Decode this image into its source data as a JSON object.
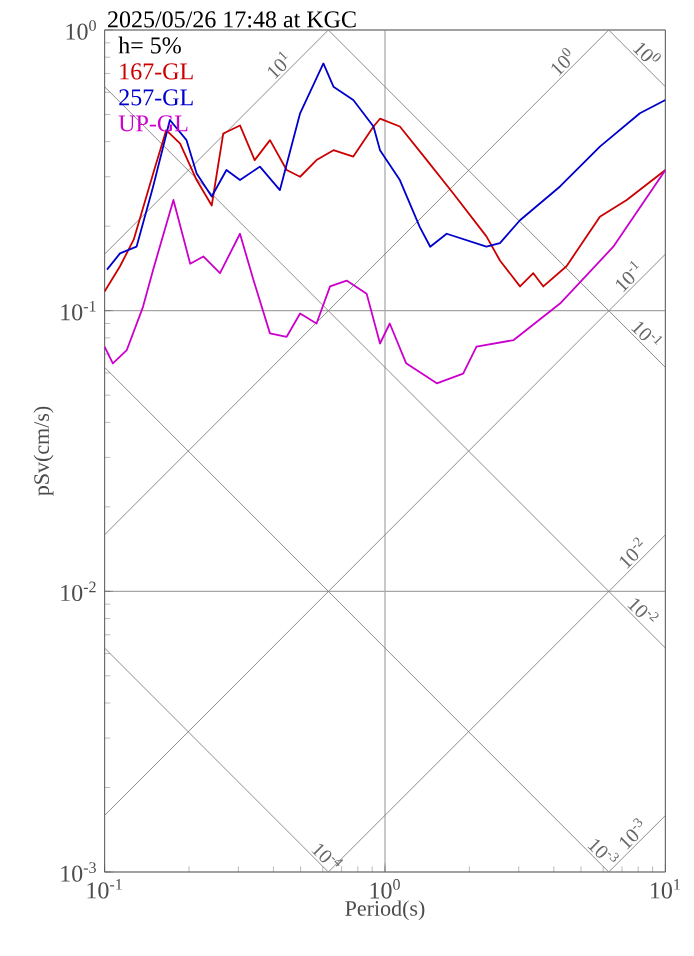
{
  "chart_data": {
    "type": "line",
    "title": "2025/05/26 17:48 at KGC",
    "xlabel": "Period(s)",
    "ylabel": "pSv(cm/s)",
    "log": "xy",
    "grid": true,
    "legend": "top left",
    "marker": "none",
    "line_style": "solid",
    "xlim": [
      0.1,
      10
    ],
    "ylim": [
      0.001,
      1
    ],
    "xticks": [
      {
        "value": 0.1,
        "label": "10$^{-1}$"
      },
      {
        "value": 1,
        "label": "10$^{0}$"
      },
      {
        "value": 10,
        "label": "10$^{1}$"
      }
    ],
    "yticks": [
      {
        "value": 0.001,
        "label": "10$^{-3}$"
      },
      {
        "value": 0.01,
        "label": "10$^{-2}$"
      },
      {
        "value": 0.1,
        "label": "10$^{-1}$"
      },
      {
        "value": 1,
        "label": "10$^{0}$"
      }
    ],
    "series": [
      {
        "color": "#808080",
        "x": [
          0.1,
          0.628
        ],
        "values": [
          0.00628,
          0.001
        ]
      },
      {
        "color": "#808080",
        "x": [
          0.1,
          6.28
        ],
        "values": [
          0.0628,
          0.001
        ]
      },
      {
        "color": "#808080",
        "x": [
          0.1,
          10
        ],
        "values": [
          0.628,
          0.00628
        ]
      },
      {
        "color": "#808080",
        "x": [
          0.628,
          10
        ],
        "values": [
          1,
          0.0628
        ]
      },
      {
        "color": "#808080",
        "x": [
          6.28,
          10
        ],
        "values": [
          1,
          0.628
        ]
      },
      {
        "color": "#808080",
        "x": [
          6.28,
          10
        ],
        "values": [
          0.001,
          0.00159
        ]
      },
      {
        "color": "#808080",
        "x": [
          0.628,
          10
        ],
        "values": [
          0.001,
          0.0159
        ]
      },
      {
        "color": "#808080",
        "x": [
          0.1,
          10
        ],
        "values": [
          0.00159,
          0.159
        ]
      },
      {
        "color": "#808080",
        "x": [
          0.1,
          6.28
        ],
        "values": [
          0.0159,
          1
        ]
      },
      {
        "color": "#808080",
        "x": [
          0.1,
          0.628
        ],
        "values": [
          0.159,
          1
        ]
      },
      {
        "name": "167-GL",
        "color": "#cc0000",
        "x": [
          0.1,
          0.1135,
          0.127,
          0.149,
          0.166,
          0.186,
          0.213,
          0.241,
          0.265,
          0.304,
          0.343,
          0.389,
          0.446,
          0.498,
          0.57,
          0.655,
          0.771,
          0.91,
          0.96,
          1.13,
          1.41,
          1.75,
          2.3,
          2.57,
          3.03,
          3.38,
          3.67,
          4.44,
          5.84,
          7.28,
          10
        ],
        "values": [
          0.117,
          0.144,
          0.179,
          0.308,
          0.44,
          0.394,
          0.292,
          0.237,
          0.428,
          0.457,
          0.344,
          0.405,
          0.317,
          0.3,
          0.344,
          0.373,
          0.354,
          0.453,
          0.483,
          0.453,
          0.344,
          0.262,
          0.184,
          0.151,
          0.122,
          0.136,
          0.122,
          0.144,
          0.216,
          0.248,
          0.317
        ]
      },
      {
        "name": "257-GL",
        "color": "#0000cc",
        "x": [
          0.102,
          0.1135,
          0.13,
          0.149,
          0.171,
          0.196,
          0.213,
          0.241,
          0.272,
          0.304,
          0.358,
          0.422,
          0.498,
          0.603,
          0.655,
          0.771,
          0.91,
          0.96,
          1.13,
          1.33,
          1.45,
          1.66,
          2.3,
          2.57,
          3.03,
          4.21,
          5.84,
          8.11,
          10
        ],
        "values": [
          0.14,
          0.16,
          0.169,
          0.277,
          0.478,
          0.405,
          0.308,
          0.255,
          0.317,
          0.292,
          0.326,
          0.269,
          0.505,
          0.76,
          0.628,
          0.563,
          0.453,
          0.373,
          0.292,
          0.199,
          0.169,
          0.188,
          0.169,
          0.174,
          0.21,
          0.277,
          0.384,
          0.505,
          0.563
        ]
      },
      {
        "name": "UP-GL",
        "color": "#cc00cc",
        "x": [
          0.1,
          0.107,
          0.12,
          0.137,
          0.149,
          0.176,
          0.202,
          0.225,
          0.258,
          0.304,
          0.34,
          0.389,
          0.446,
          0.498,
          0.57,
          0.637,
          0.73,
          0.86,
          0.96,
          1.04,
          1.19,
          1.53,
          1.9,
          2.12,
          2.87,
          4.21,
          6.52,
          10
        ],
        "values": [
          0.0744,
          0.0649,
          0.0724,
          0.103,
          0.14,
          0.248,
          0.147,
          0.156,
          0.136,
          0.188,
          0.128,
          0.083,
          0.0807,
          0.0977,
          0.09,
          0.122,
          0.128,
          0.115,
          0.0764,
          0.09,
          0.0649,
          0.0551,
          0.0597,
          0.0744,
          0.0785,
          0.106,
          0.169,
          0.317
        ]
      }
    ],
    "annotations": [
      "h= 5%",
      {
        "text": "10$^{1}$",
        "x": 0.444,
        "y": 0.707
      },
      {
        "text": "10$^{0}$",
        "x": 4.56,
        "y": 0.726
      },
      {
        "text": "10$^{0}$",
        "x": 8.1,
        "y": 0.776
      },
      {
        "text": "10$^{-1}$",
        "x": 7.85,
        "y": 0.125
      },
      {
        "text": "10$^{-1}$",
        "x": 8.1,
        "y": 0.0776
      },
      {
        "text": "10$^{-2}$",
        "x": 8.1,
        "y": 0.0129
      },
      {
        "text": "10$^{-2}$",
        "x": 7.85,
        "y": 0.008
      },
      {
        "text": "10$^{-3}$",
        "x": 8.1,
        "y": 0.00129
      },
      {
        "text": "10$^{-3}$",
        "x": 5.66,
        "y": 0.00111
      },
      {
        "text": "10$^{-4}$",
        "x": 0.586,
        "y": 0.00107
      }
    ]
  }
}
